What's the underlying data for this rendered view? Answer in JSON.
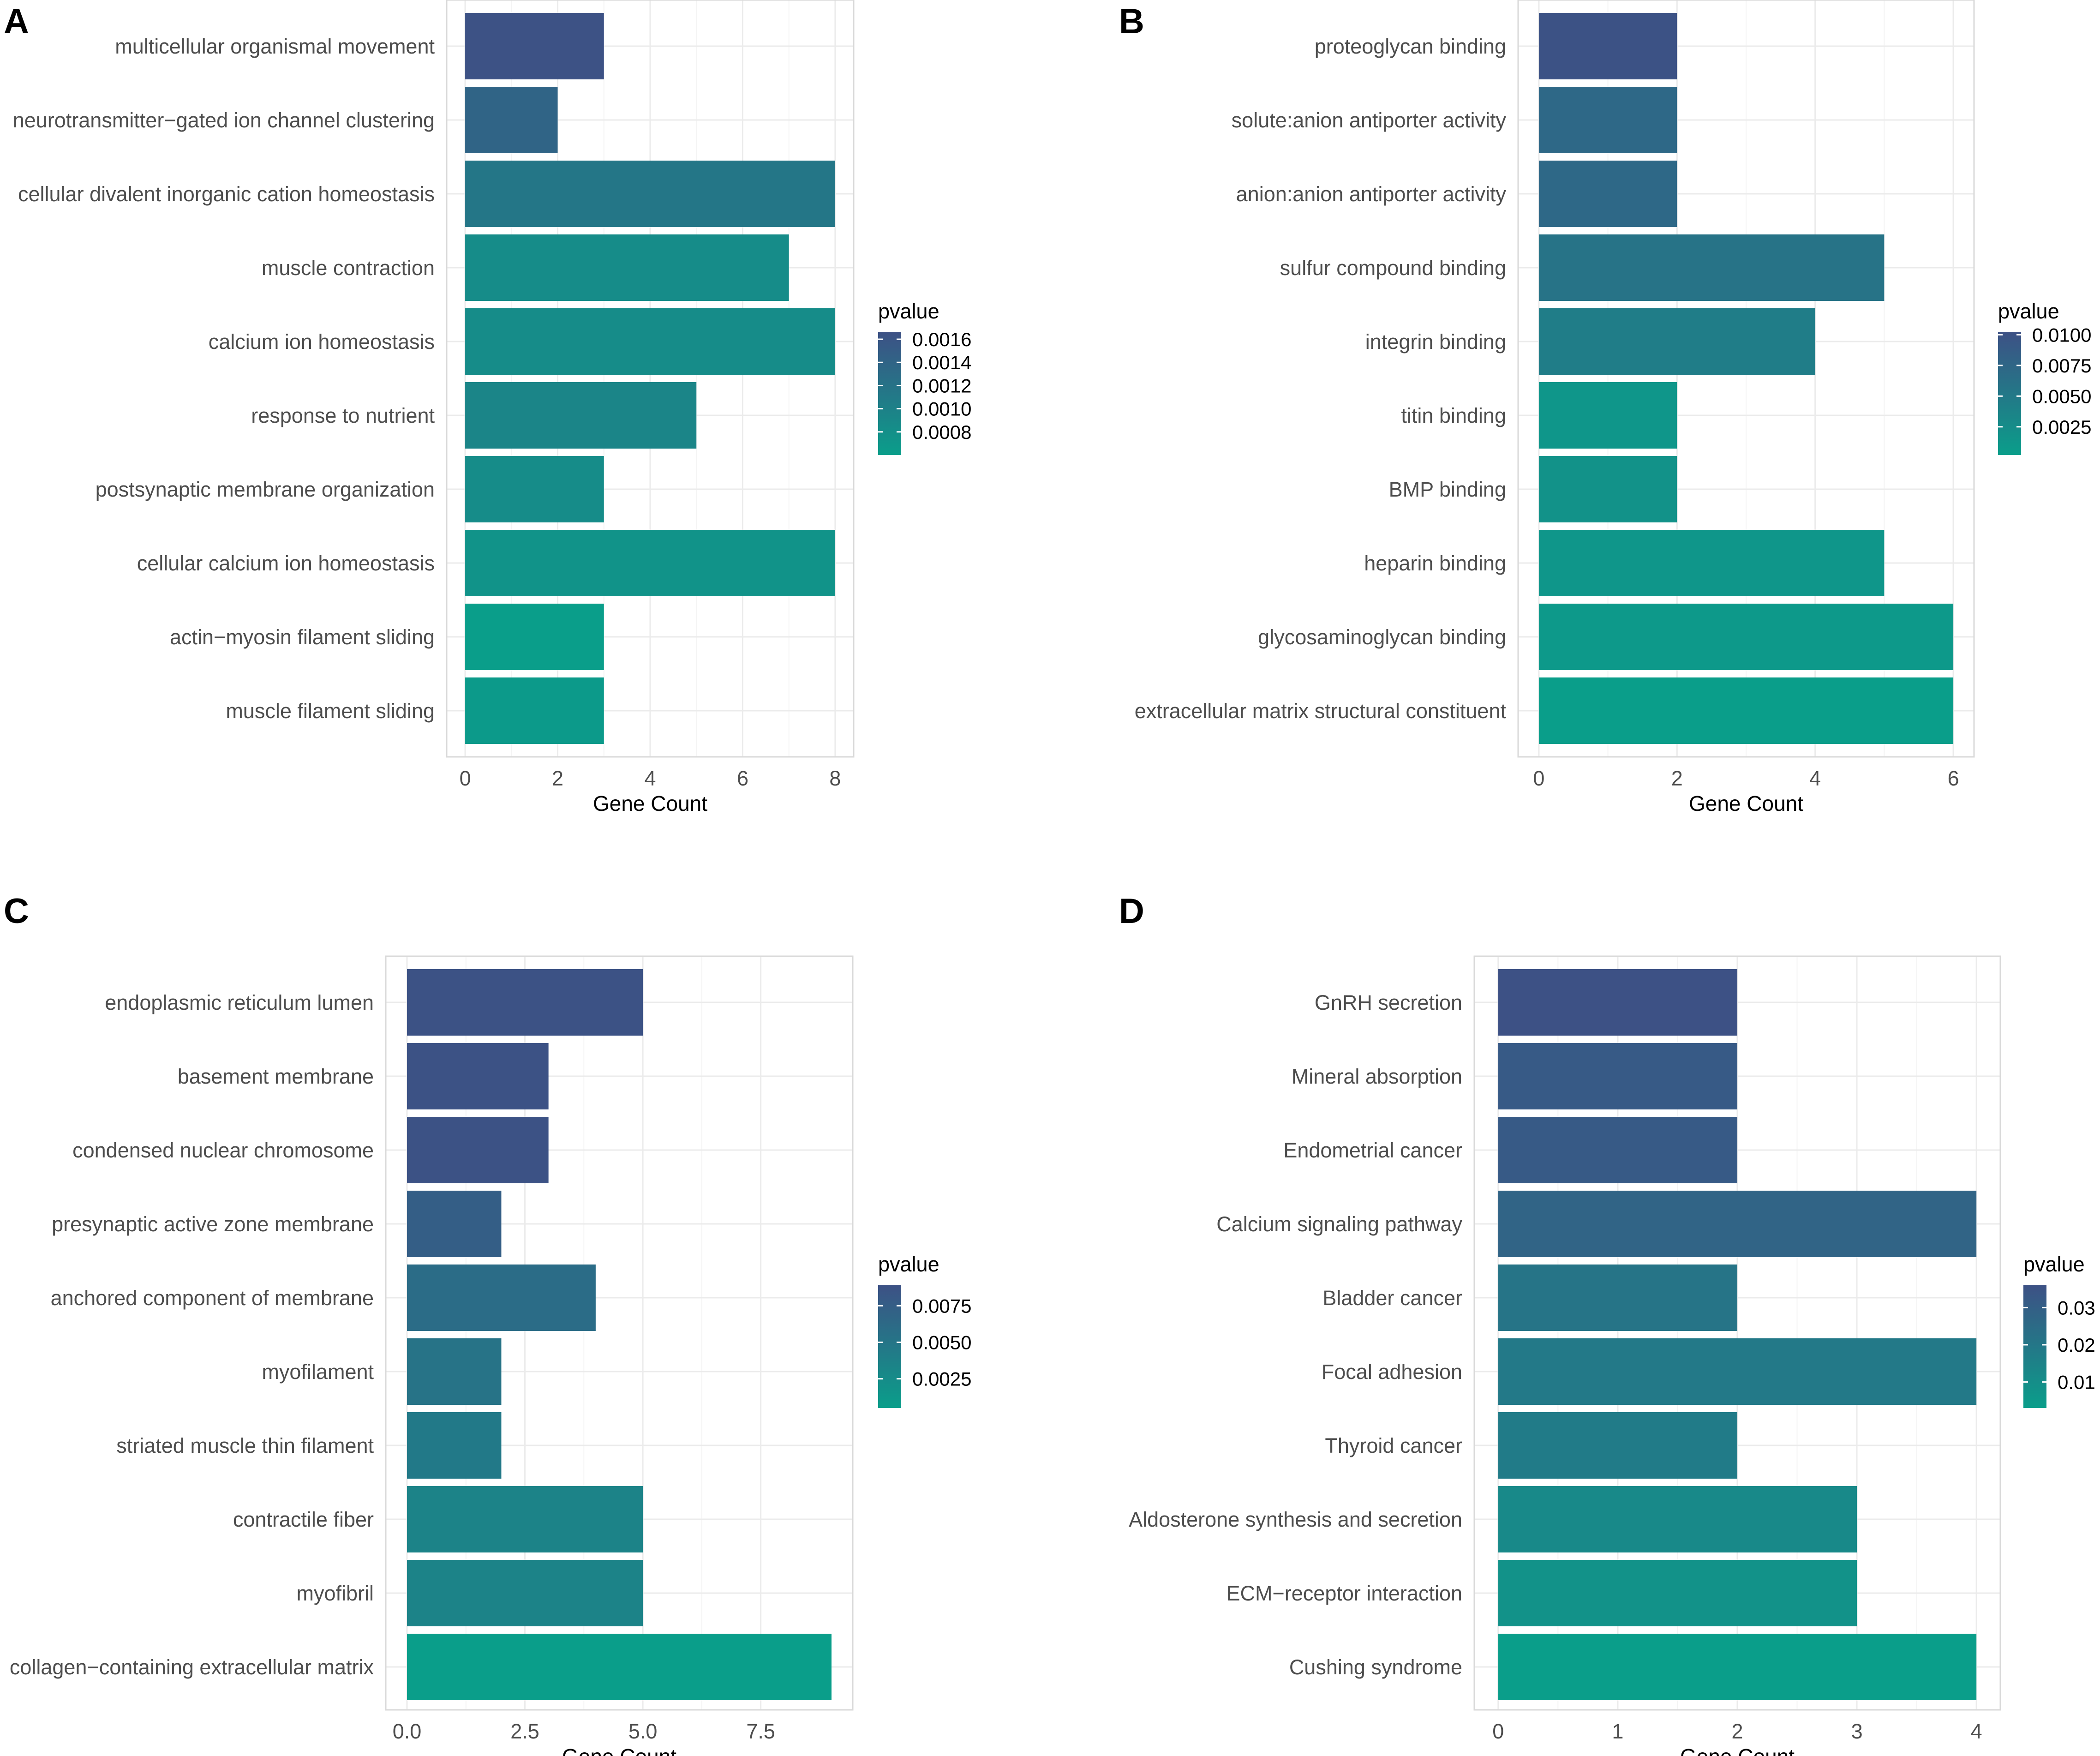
{
  "colors": {
    "low_pvalue": "#0a9e8a",
    "high_pvalue": "#3d5185",
    "grid_major": "#ebebeb",
    "grid_minor": "#f4f4f4",
    "panel_border": "#d9d9d9",
    "tick_text": "#4d4d4d"
  },
  "chart_data": [
    {
      "panel": "A",
      "type": "bar",
      "orientation": "horizontal",
      "categories": [
        "multicellular organismal movement",
        "neurotransmitter−gated ion channel clustering",
        "cellular divalent inorganic cation homeostasis",
        "muscle contraction",
        "calcium ion homeostasis",
        "response to nutrient",
        "postsynaptic membrane organization",
        "cellular calcium ion homeostasis",
        "actin−myosin filament sliding",
        "muscle filament sliding"
      ],
      "values": [
        3,
        2,
        8,
        7,
        8,
        5,
        3,
        8,
        3,
        3
      ],
      "pvalues": [
        0.00165,
        0.0014,
        0.00115,
        0.00085,
        0.00085,
        0.00095,
        0.00085,
        0.00075,
        0.0006,
        0.00065
      ],
      "xlabel": "Gene Count",
      "xlim": [
        -0.4,
        8.4
      ],
      "xticks": [
        0,
        2,
        4,
        6,
        8
      ],
      "xtick_labels": [
        "0",
        "2",
        "4",
        "6",
        "8"
      ],
      "legend": {
        "title": "pvalue",
        "range": [
          0.0006,
          0.00166
        ],
        "ticks": [
          0.0016,
          0.0014,
          0.0012,
          0.001,
          0.0008
        ],
        "tick_labels": [
          "0.0016",
          "0.0014",
          "0.0012",
          "0.0010",
          "0.0008"
        ]
      }
    },
    {
      "panel": "B",
      "type": "bar",
      "orientation": "horizontal",
      "categories": [
        "proteoglycan binding",
        "solute:anion antiporter activity",
        "anion:anion antiporter activity",
        "sulfur compound binding",
        "integrin binding",
        "titin binding",
        "BMP binding",
        "heparin binding",
        "glycosaminoglycan binding",
        "extracellular matrix structural constituent"
      ],
      "values": [
        2,
        2,
        2,
        5,
        4,
        2,
        2,
        5,
        6,
        6
      ],
      "pvalues": [
        0.0101,
        0.0072,
        0.0072,
        0.0058,
        0.0045,
        0.0012,
        0.0018,
        0.0012,
        0.0008,
        0.0002
      ],
      "xlabel": "Gene Count",
      "xlim": [
        -0.3,
        6.3
      ],
      "xticks": [
        0,
        2,
        4,
        6
      ],
      "xtick_labels": [
        "0",
        "2",
        "4",
        "6"
      ],
      "legend": {
        "title": "pvalue",
        "range": [
          0.0002,
          0.0102
        ],
        "ticks": [
          0.01,
          0.0075,
          0.005,
          0.0025
        ],
        "tick_labels": [
          "0.0100",
          "0.0075",
          "0.0050",
          "0.0025"
        ]
      }
    },
    {
      "panel": "C",
      "type": "bar",
      "orientation": "horizontal",
      "categories": [
        "endoplasmic reticulum lumen",
        "basement membrane",
        "condensed nuclear chromosome",
        "presynaptic active zone membrane",
        "anchored component of membrane",
        "myofilament",
        "striated muscle thin filament",
        "contractile fiber",
        "myofibril",
        "collagen−containing extracellular matrix"
      ],
      "values": [
        5,
        3,
        3,
        2,
        4,
        2,
        2,
        5,
        5,
        9
      ],
      "pvalues": [
        0.0088,
        0.0088,
        0.0088,
        0.0075,
        0.006,
        0.0052,
        0.0045,
        0.0035,
        0.0035,
        0.0005
      ],
      "xlabel": "Gene Count",
      "xlim": [
        -0.45,
        9.45
      ],
      "xticks": [
        0,
        2.5,
        5,
        7.5
      ],
      "xtick_labels": [
        "0.0",
        "2.5",
        "5.0",
        "7.5"
      ],
      "legend": {
        "title": "pvalue",
        "range": [
          0.0005,
          0.0089
        ],
        "ticks": [
          0.0075,
          0.005,
          0.0025
        ],
        "tick_labels": [
          "0.0075",
          "0.0050",
          "0.0025"
        ]
      }
    },
    {
      "panel": "D",
      "type": "bar",
      "orientation": "horizontal",
      "categories": [
        "GnRH secretion",
        "Mineral absorption",
        "Endometrial cancer",
        "Calcium signaling pathway",
        "Bladder cancer",
        "Focal adhesion",
        "Thyroid cancer",
        "Aldosterone synthesis and secretion",
        "ECM−receptor interaction",
        "Cushing syndrome"
      ],
      "values": [
        2,
        2,
        2,
        4,
        2,
        4,
        2,
        3,
        3,
        4
      ],
      "pvalues": [
        0.036,
        0.032,
        0.032,
        0.028,
        0.021,
        0.019,
        0.018,
        0.012,
        0.008,
        0.003
      ],
      "xlabel": "Gene Count",
      "xlim": [
        -0.2,
        4.2
      ],
      "xticks": [
        0,
        1,
        2,
        3,
        4
      ],
      "xtick_labels": [
        "0",
        "1",
        "2",
        "3",
        "4"
      ],
      "legend": {
        "title": "pvalue",
        "range": [
          0.003,
          0.036
        ],
        "ticks": [
          0.03,
          0.02,
          0.01
        ],
        "tick_labels": [
          "0.03",
          "0.02",
          "0.01"
        ]
      }
    }
  ]
}
